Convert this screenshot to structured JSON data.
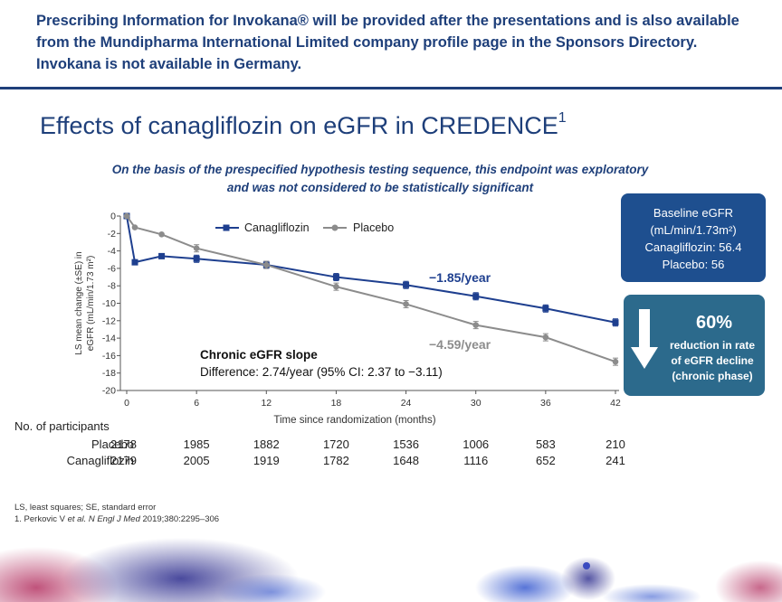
{
  "banner": {
    "line1": "Prescribing Information for Invokana® will be provided after the presentations and is also available",
    "line2": "from the Mundipharma International Limited company profile page in the Sponsors Directory.",
    "line3": "Invokana is not available in Germany."
  },
  "slide": {
    "title": "Effects of canagliflozin on eGFR in CREDENCE",
    "title_ref": "1",
    "subtitle_line1": "On the basis of the prespecified hypothesis testing sequence, this endpoint was exploratory",
    "subtitle_line2": "and was not considered to be statistically significant"
  },
  "chart_data": {
    "type": "line",
    "xlabel": "Time since randomization (months)",
    "ylabel_line1": "LS mean change (±SE) in",
    "ylabel_line2": "eGFR (mL/min/1.73 m²)",
    "xlim": [
      0,
      42
    ],
    "ylim": [
      -20,
      0
    ],
    "x_ticks": [
      0,
      6,
      12,
      18,
      24,
      30,
      36,
      42
    ],
    "y_ticks": [
      0,
      -2,
      -4,
      -6,
      -8,
      -10,
      -12,
      -14,
      -16,
      -18,
      -20
    ],
    "legend_position": "top-left",
    "series": [
      {
        "name": "Canagliflozin",
        "color": "#1e3f8f",
        "marker": "square",
        "x": [
          0,
          0.7,
          3,
          6,
          12,
          18,
          24,
          30,
          36,
          42
        ],
        "y": [
          0,
          -5.3,
          -4.6,
          -4.9,
          -5.6,
          -7.0,
          -7.9,
          -9.2,
          -10.6,
          -12.2
        ]
      },
      {
        "name": "Placebo",
        "color": "#8c8c8c",
        "marker": "circle",
        "x": [
          0,
          0.7,
          3,
          6,
          12,
          18,
          24,
          30,
          36,
          42
        ],
        "y": [
          0,
          -1.3,
          -2.1,
          -3.7,
          -5.6,
          -8.1,
          -10.1,
          -12.5,
          -13.9,
          -16.7
        ]
      }
    ],
    "annotations": {
      "cana_slope": "−1.85/year",
      "placebo_slope": "−4.59/year",
      "chronic_title": "Chronic eGFR slope",
      "chronic_diff": "Difference: 2.74/year (95% CI: 2.37 to −3.11)"
    }
  },
  "baseline_box": {
    "line1": "Baseline eGFR",
    "line2": "(mL/min/1.73m²)",
    "line3": "Canagliflozin: 56.4",
    "line4": "Placebo: 56"
  },
  "reduction_box": {
    "percent": "60%",
    "line1": "reduction in rate",
    "line2": "of eGFR decline",
    "line3": "(chronic phase)",
    "arrow_color": "#ffffff"
  },
  "participants": {
    "heading": "No. of participants",
    "rows": [
      {
        "label": "Placebo",
        "values": [
          "2178",
          "1985",
          "1882",
          "1720",
          "1536",
          "1006",
          "583",
          "210"
        ]
      },
      {
        "label": "Canagliflozin",
        "values": [
          "2179",
          "2005",
          "1919",
          "1782",
          "1648",
          "1116",
          "652",
          "241"
        ]
      }
    ]
  },
  "footnotes": {
    "abbrev": "LS, least squares; SE, standard error",
    "ref_pre": "1. Perkovic V ",
    "ref_italic": "et al. N Engl J Med",
    "ref_post": " 2019;380:2295–306"
  }
}
